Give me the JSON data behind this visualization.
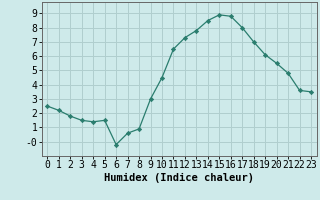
{
  "x": [
    0,
    1,
    2,
    3,
    4,
    5,
    6,
    7,
    8,
    9,
    10,
    11,
    12,
    13,
    14,
    15,
    16,
    17,
    18,
    19,
    20,
    21,
    22,
    23
  ],
  "y": [
    2.5,
    2.2,
    1.8,
    1.5,
    1.4,
    1.5,
    -0.2,
    0.6,
    0.9,
    3.0,
    4.5,
    6.5,
    7.3,
    7.8,
    8.5,
    8.9,
    8.8,
    8.0,
    7.0,
    6.1,
    5.5,
    4.8,
    3.6,
    3.5
  ],
  "line_color": "#2a7d6e",
  "marker": "D",
  "marker_size": 2.2,
  "bg_color": "#ceeaea",
  "grid_color": "#b0cece",
  "xlabel": "Humidex (Indice chaleur)",
  "xlim": [
    -0.5,
    23.5
  ],
  "ylim": [
    -1.0,
    9.8
  ],
  "yticks": [
    0,
    1,
    2,
    3,
    4,
    5,
    6,
    7,
    8,
    9
  ],
  "ytick_labels": [
    "-0",
    "1",
    "2",
    "3",
    "4",
    "5",
    "6",
    "7",
    "8",
    "9"
  ],
  "xticks": [
    0,
    1,
    2,
    3,
    4,
    5,
    6,
    7,
    8,
    9,
    10,
    11,
    12,
    13,
    14,
    15,
    16,
    17,
    18,
    19,
    20,
    21,
    22,
    23
  ],
  "xlabel_fontsize": 7.5,
  "tick_fontsize": 7
}
